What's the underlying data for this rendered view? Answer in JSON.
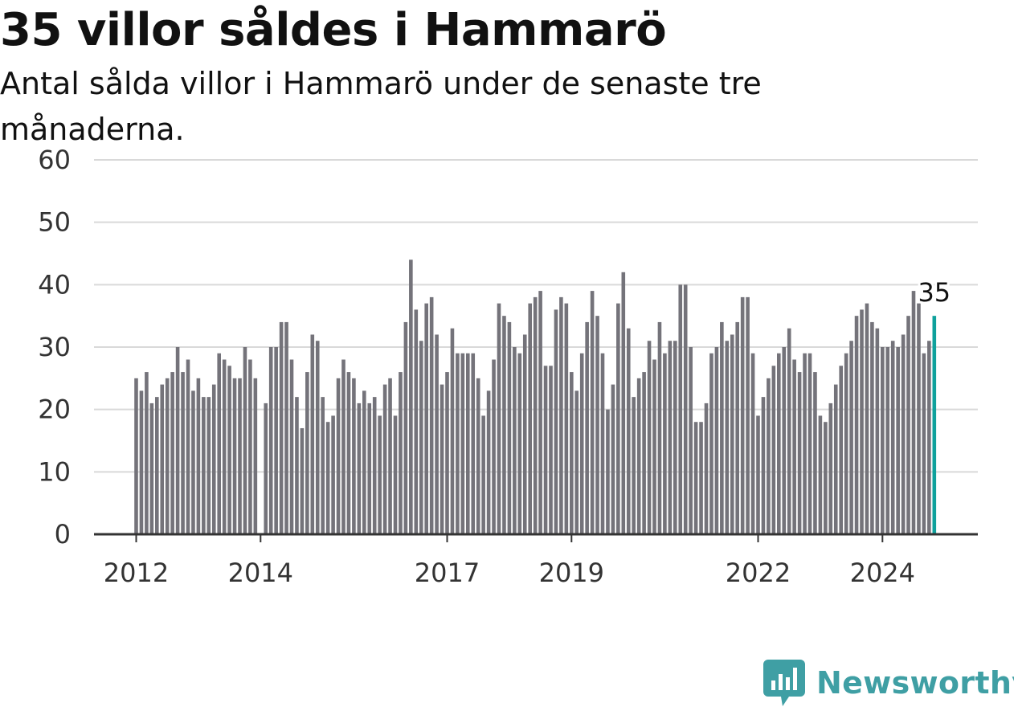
{
  "header": {
    "title": "35 villor såldes i Hammarö",
    "subtitle": "Antal sålda villor i Hammarö under de senaste tre månaderna."
  },
  "brand": {
    "name": "Newsworthy",
    "icon": "newsworthy-logo-icon",
    "color": "#3f9fa4"
  },
  "colors": {
    "bar": "#74737a",
    "highlight": "#0fa19c",
    "grid": "#d9d9d9",
    "axis": "#333333"
  },
  "chart_data": {
    "type": "bar",
    "ylim": [
      0,
      60
    ],
    "yticks": [
      0,
      10,
      20,
      30,
      40,
      50,
      60
    ],
    "x_ticks": [
      "2012",
      "2014",
      "2017",
      "2019",
      "2022",
      "2024"
    ],
    "start_month": "2012-01",
    "values": [
      25,
      23,
      26,
      21,
      22,
      24,
      25,
      26,
      30,
      26,
      28,
      23,
      25,
      22,
      22,
      24,
      29,
      28,
      27,
      25,
      25,
      30,
      28,
      25,
      0,
      21,
      30,
      30,
      34,
      34,
      28,
      22,
      17,
      26,
      32,
      31,
      22,
      18,
      19,
      25,
      28,
      26,
      25,
      21,
      23,
      21,
      22,
      19,
      24,
      25,
      19,
      26,
      34,
      44,
      36,
      31,
      37,
      38,
      32,
      24,
      26,
      33,
      29,
      29,
      29,
      29,
      25,
      19,
      23,
      28,
      37,
      35,
      34,
      30,
      29,
      32,
      37,
      38,
      39,
      27,
      27,
      36,
      38,
      37,
      26,
      23,
      29,
      34,
      39,
      35,
      29,
      20,
      24,
      37,
      42,
      33,
      22,
      25,
      26,
      31,
      28,
      34,
      29,
      31,
      31,
      40,
      40,
      30,
      18,
      18,
      21,
      29,
      30,
      34,
      31,
      32,
      34,
      38,
      38,
      29,
      19,
      22,
      25,
      27,
      29,
      30,
      33,
      28,
      26,
      29,
      29,
      26,
      19,
      18,
      21,
      24,
      27,
      29,
      31,
      35,
      36,
      37,
      34,
      33,
      30,
      30,
      31,
      30,
      32,
      35,
      39,
      37,
      29,
      31,
      35
    ],
    "highlight_last": true,
    "callout": "35"
  }
}
